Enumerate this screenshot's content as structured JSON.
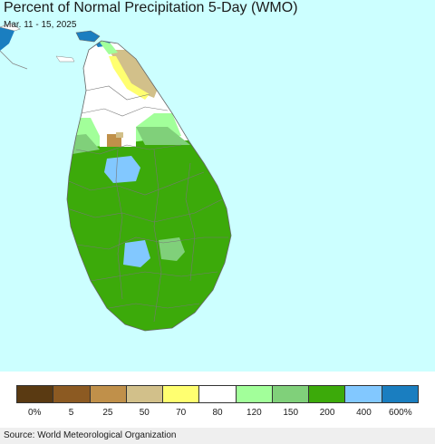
{
  "title": "Percent of Normal Precipitation 5-Day (WMO)",
  "subtitle": "Mar. 11 - 15, 2025",
  "source": "Source: World Meteorological Organization",
  "map": {
    "ocean_color": "#ccffff",
    "land_neighbor_color": "#ffffff",
    "outline_color": "#888888"
  },
  "legend": {
    "colors": [
      "#5a3a12",
      "#8c5a22",
      "#c0904a",
      "#d2c08a",
      "#ffff70",
      "#ffffff",
      "#a2ff9a",
      "#80d07a",
      "#3caa0a",
      "#82c8ff",
      "#1a7ec0"
    ],
    "labels": [
      "0%",
      "5",
      "25",
      "50",
      "70",
      "80",
      "120",
      "150",
      "200",
      "400",
      "600%"
    ]
  }
}
